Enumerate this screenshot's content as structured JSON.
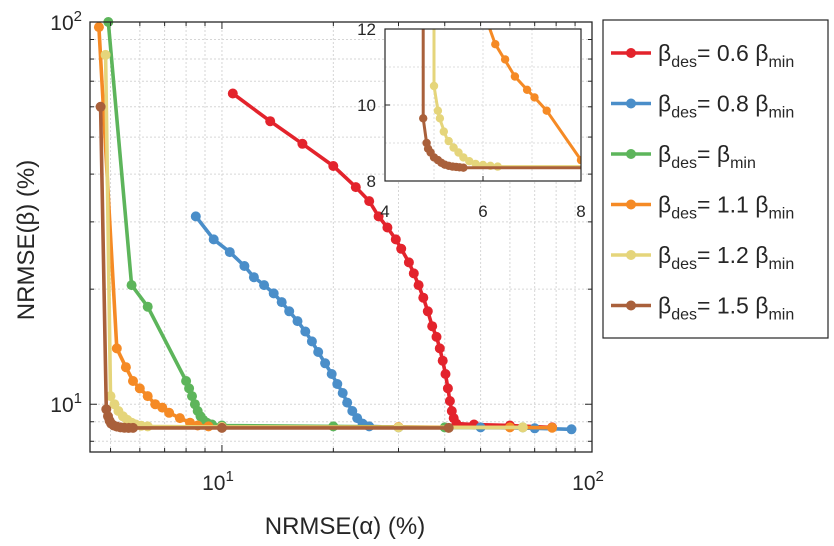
{
  "chart_data": [
    {
      "type": "line",
      "name": "main",
      "xscale": "log",
      "yscale": "log",
      "xlabel": "NRMSE(α) (%)",
      "ylabel": "NRMSE(β) (%)",
      "xlim": [
        4.4,
        100
      ],
      "ylim": [
        7.5,
        100
      ],
      "grid": true,
      "x_ticks": [
        {
          "value": 10,
          "base": "10",
          "exp": "1"
        },
        {
          "value": 100,
          "base": "10",
          "exp": "2"
        }
      ],
      "y_ticks": [
        {
          "value": 10,
          "base": "10",
          "exp": "1"
        },
        {
          "value": 100,
          "base": "10",
          "exp": "2"
        }
      ],
      "legend_position": "outside-right",
      "series": [
        {
          "name": "β_des = 0.6 β_min",
          "legend": {
            "prefix": "β",
            "prefix_sub": "des",
            "rest": "= 0.6 β",
            "rest_sub": "min"
          },
          "color": "#E3232C",
          "points": [
            [
              10.7,
              65
            ],
            [
              13.5,
              55
            ],
            [
              16.5,
              48
            ],
            [
              20,
              42
            ],
            [
              23,
              37
            ],
            [
              25,
              34
            ],
            [
              26.5,
              31
            ],
            [
              28,
              29
            ],
            [
              29.5,
              27
            ],
            [
              30.5,
              25.5
            ],
            [
              32,
              23.5
            ],
            [
              33,
              22
            ],
            [
              34,
              20.5
            ],
            [
              35,
              19
            ],
            [
              36,
              17.5
            ],
            [
              37,
              16
            ],
            [
              38,
              15
            ],
            [
              38.8,
              14
            ],
            [
              39.5,
              13
            ],
            [
              40.2,
              12
            ],
            [
              40.8,
              11
            ],
            [
              41.3,
              10.2
            ],
            [
              41.8,
              9.6
            ],
            [
              42.3,
              9.2
            ],
            [
              43,
              8.9
            ],
            [
              48,
              8.85
            ],
            [
              60,
              8.8
            ],
            [
              78,
              8.7
            ]
          ]
        },
        {
          "name": "β_des = 0.8 β_min",
          "legend": {
            "prefix": "β",
            "prefix_sub": "des",
            "rest": "= 0.8 β",
            "rest_sub": "min"
          },
          "color": "#4A8EC9",
          "points": [
            [
              8.5,
              31
            ],
            [
              9.5,
              27
            ],
            [
              10.5,
              25
            ],
            [
              11.5,
              23
            ],
            [
              12.2,
              21.5
            ],
            [
              13,
              20.5
            ],
            [
              13.8,
              19.5
            ],
            [
              14.5,
              18.5
            ],
            [
              15.2,
              17.5
            ],
            [
              16,
              16.5
            ],
            [
              16.8,
              15.5
            ],
            [
              17.5,
              14.6
            ],
            [
              18.2,
              13.7
            ],
            [
              19,
              12.8
            ],
            [
              19.8,
              12
            ],
            [
              20.5,
              11.3
            ],
            [
              21.2,
              10.7
            ],
            [
              21.8,
              10.1
            ],
            [
              22.5,
              9.6
            ],
            [
              23.2,
              9.2
            ],
            [
              24,
              8.9
            ],
            [
              25,
              8.75
            ],
            [
              30,
              8.7
            ],
            [
              50,
              8.7
            ],
            [
              70,
              8.65
            ],
            [
              88,
              8.6
            ]
          ]
        },
        {
          "name": "β_des = β_min",
          "legend": {
            "prefix": "β",
            "prefix_sub": "des",
            "rest": "= β",
            "rest_sub": "min"
          },
          "color": "#5DB55B",
          "points": [
            [
              4.93,
              100
            ],
            [
              5.7,
              20.5
            ],
            [
              6.3,
              18
            ],
            [
              8,
              11.5
            ],
            [
              8.15,
              11
            ],
            [
              8.3,
              10.5
            ],
            [
              8.45,
              10
            ],
            [
              8.6,
              9.6
            ],
            [
              8.75,
              9.3
            ],
            [
              8.9,
              9.1
            ],
            [
              9.1,
              8.95
            ],
            [
              9.4,
              8.85
            ],
            [
              10,
              8.8
            ],
            [
              20,
              8.75
            ],
            [
              40,
              8.7
            ],
            [
              65,
              8.7
            ]
          ]
        },
        {
          "name": "β_des = 1.1 β_min",
          "legend": {
            "prefix": "β",
            "prefix_sub": "des",
            "rest": "= 1.1 β",
            "rest_sub": "min"
          },
          "color": "#F58A25",
          "points": [
            [
              4.65,
              97
            ],
            [
              5.2,
              14
            ],
            [
              5.5,
              12.5
            ],
            [
              5.75,
              11.5
            ],
            [
              6,
              11
            ],
            [
              6.3,
              10.5
            ],
            [
              6.6,
              10
            ],
            [
              6.9,
              9.8
            ],
            [
              7.2,
              9.5
            ],
            [
              7.7,
              9.2
            ],
            [
              8.2,
              8.95
            ],
            [
              8.6,
              8.8
            ],
            [
              9.2,
              8.75
            ],
            [
              10,
              8.72
            ],
            [
              30,
              8.72
            ],
            [
              60,
              8.7
            ],
            [
              78,
              8.68
            ]
          ]
        },
        {
          "name": "β_des = 1.2 β_min",
          "legend": {
            "prefix": "β",
            "prefix_sub": "des",
            "rest": "= 1.2 β",
            "rest_sub": "min"
          },
          "color": "#E5D57B",
          "points": [
            [
              4.85,
              82
            ],
            [
              5.0,
              10.5
            ],
            [
              5.12,
              10
            ],
            [
              5.25,
              9.6
            ],
            [
              5.4,
              9.3
            ],
            [
              5.55,
              9.1
            ],
            [
              5.7,
              8.95
            ],
            [
              5.85,
              8.85
            ],
            [
              6.05,
              8.78
            ],
            [
              6.3,
              8.75
            ],
            [
              10,
              8.72
            ],
            [
              30,
              8.7
            ],
            [
              65,
              8.7
            ]
          ]
        },
        {
          "name": "β_des = 1.5 β_min",
          "legend": {
            "prefix": "β",
            "prefix_sub": "des",
            "rest": "= 1.5 β",
            "rest_sub": "min"
          },
          "color": "#A9603B",
          "points": [
            [
              4.7,
              60
            ],
            [
              4.87,
              9.7
            ],
            [
              4.92,
              9.3
            ],
            [
              4.97,
              9.05
            ],
            [
              5.02,
              8.9
            ],
            [
              5.1,
              8.8
            ],
            [
              5.2,
              8.74
            ],
            [
              5.32,
              8.7
            ],
            [
              5.45,
              8.68
            ],
            [
              5.6,
              8.67
            ],
            [
              5.75,
              8.67
            ],
            [
              10,
              8.67
            ],
            [
              41,
              8.67
            ]
          ]
        }
      ]
    },
    {
      "type": "line",
      "name": "inset",
      "xscale": "linear",
      "yscale": "linear",
      "xlim": [
        4,
        8
      ],
      "ylim": [
        8,
        12
      ],
      "grid": true,
      "x_ticks": [
        "4",
        "6",
        "8"
      ],
      "y_ticks": [
        "8",
        "10",
        "12"
      ],
      "series": [
        {
          "name": "β_des = 0.6 β_min",
          "color": "#E3232C",
          "points": []
        },
        {
          "name": "β_des = 0.8 β_min",
          "color": "#4A8EC9",
          "points": []
        },
        {
          "name": "β_des = β_min",
          "color": "#5DB55B",
          "points": []
        },
        {
          "name": "β_des = 1.1 β_min",
          "color": "#F58A25",
          "points": [
            [
              6.0,
              12.5
            ],
            [
              6.25,
              11.6
            ],
            [
              6.65,
              10.75
            ],
            [
              6.9,
              10.4
            ],
            [
              7.05,
              10.2
            ],
            [
              7.3,
              9.85
            ],
            [
              8.0,
              8.55
            ]
          ],
          "markers": [
            [
              6.25,
              11.6
            ],
            [
              6.45,
              11.2
            ],
            [
              6.65,
              10.75
            ],
            [
              6.9,
              10.4
            ],
            [
              7.05,
              10.2
            ],
            [
              7.3,
              9.85
            ],
            [
              8.0,
              8.55
            ]
          ]
        },
        {
          "name": "β_des = 1.2 β_min",
          "color": "#E5D57B",
          "points": [
            [
              5.0,
              12.6
            ],
            [
              5.0,
              10.5
            ],
            [
              5.1,
              9.7
            ],
            [
              5.25,
              9.15
            ],
            [
              5.4,
              8.9
            ],
            [
              5.55,
              8.65
            ],
            [
              5.75,
              8.5
            ],
            [
              6.0,
              8.42
            ],
            [
              6.4,
              8.38
            ],
            [
              8.0,
              8.38
            ]
          ],
          "markers": [
            [
              5.0,
              10.5
            ],
            [
              5.08,
              9.85
            ],
            [
              5.12,
              9.65
            ],
            [
              5.2,
              9.3
            ],
            [
              5.3,
              9.05
            ],
            [
              5.4,
              8.88
            ],
            [
              5.5,
              8.75
            ],
            [
              5.6,
              8.62
            ],
            [
              5.72,
              8.52
            ],
            [
              5.85,
              8.45
            ],
            [
              6.0,
              8.42
            ],
            [
              6.15,
              8.4
            ],
            [
              6.3,
              8.38
            ]
          ]
        },
        {
          "name": "β_des = 1.5 β_min",
          "color": "#A9603B",
          "points": [
            [
              4.78,
              12.6
            ],
            [
              4.78,
              9.65
            ],
            [
              4.85,
              9.0
            ],
            [
              4.93,
              8.75
            ],
            [
              5.05,
              8.55
            ],
            [
              5.2,
              8.44
            ],
            [
              5.4,
              8.38
            ],
            [
              5.6,
              8.35
            ],
            [
              8.0,
              8.35
            ]
          ],
          "markers": [
            [
              4.78,
              9.65
            ],
            [
              4.85,
              9.0
            ],
            [
              4.88,
              8.85
            ],
            [
              4.93,
              8.75
            ],
            [
              5.0,
              8.62
            ],
            [
              5.08,
              8.55
            ],
            [
              5.15,
              8.48
            ],
            [
              5.22,
              8.43
            ],
            [
              5.3,
              8.4
            ],
            [
              5.38,
              8.38
            ],
            [
              5.45,
              8.37
            ],
            [
              5.52,
              8.36
            ],
            [
              5.6,
              8.35
            ]
          ]
        }
      ]
    }
  ]
}
